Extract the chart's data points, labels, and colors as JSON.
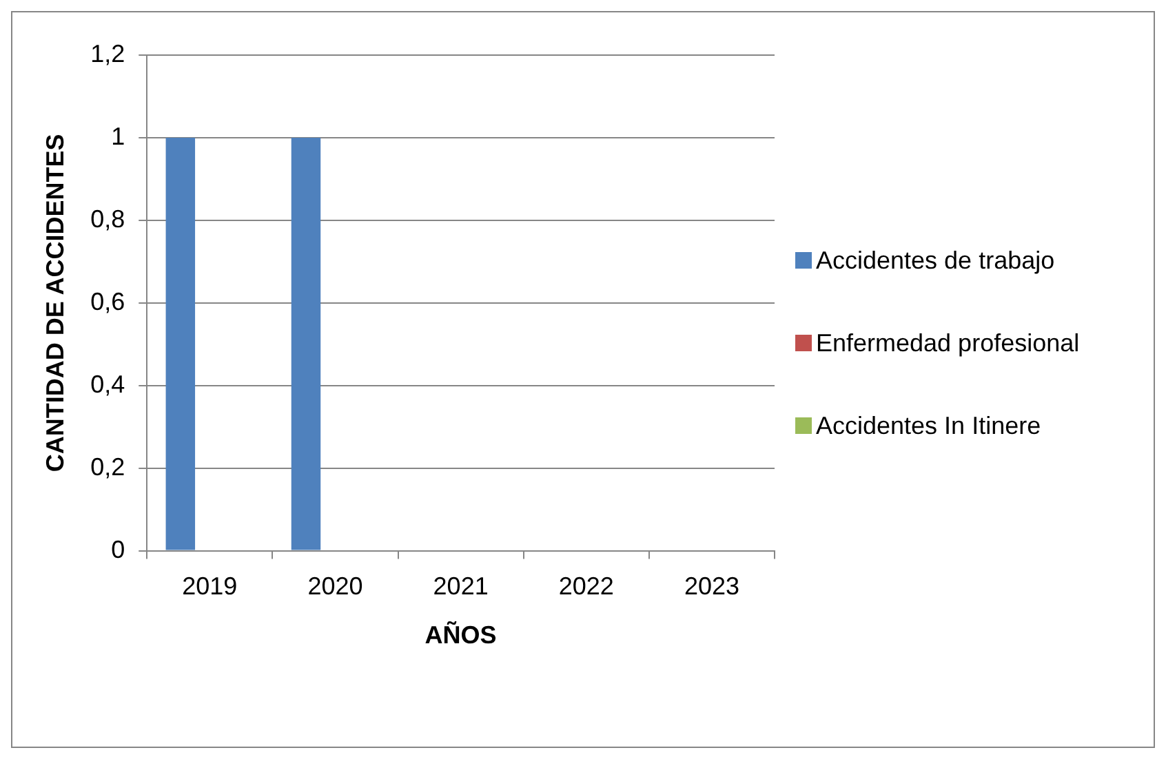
{
  "chart_data": {
    "type": "bar",
    "xlabel": "AÑOS",
    "ylabel": "CANTIDAD DE ACCIDENTES",
    "categories": [
      "2019",
      "2020",
      "2021",
      "2022",
      "2023"
    ],
    "series": [
      {
        "name": "Accidentes de trabajo",
        "color": "#4f81bd",
        "values": [
          1,
          1,
          0,
          0,
          0
        ]
      },
      {
        "name": "Enfermedad profesional",
        "color": "#c0504d",
        "values": [
          0,
          0,
          0,
          0,
          0
        ]
      },
      {
        "name": "Accidentes In Itinere",
        "color": "#9bbb59",
        "values": [
          0,
          0,
          0,
          0,
          0
        ]
      }
    ],
    "ylim": [
      0,
      1.2
    ],
    "yticks": [
      {
        "value": 0,
        "label": "0"
      },
      {
        "value": 0.2,
        "label": "0,2"
      },
      {
        "value": 0.4,
        "label": "0,4"
      },
      {
        "value": 0.6,
        "label": "0,6"
      },
      {
        "value": 0.8,
        "label": "0,8"
      },
      {
        "value": 1,
        "label": "1"
      },
      {
        "value": 1.2,
        "label": "1,2"
      }
    ],
    "grid": "y",
    "legend": "right"
  }
}
